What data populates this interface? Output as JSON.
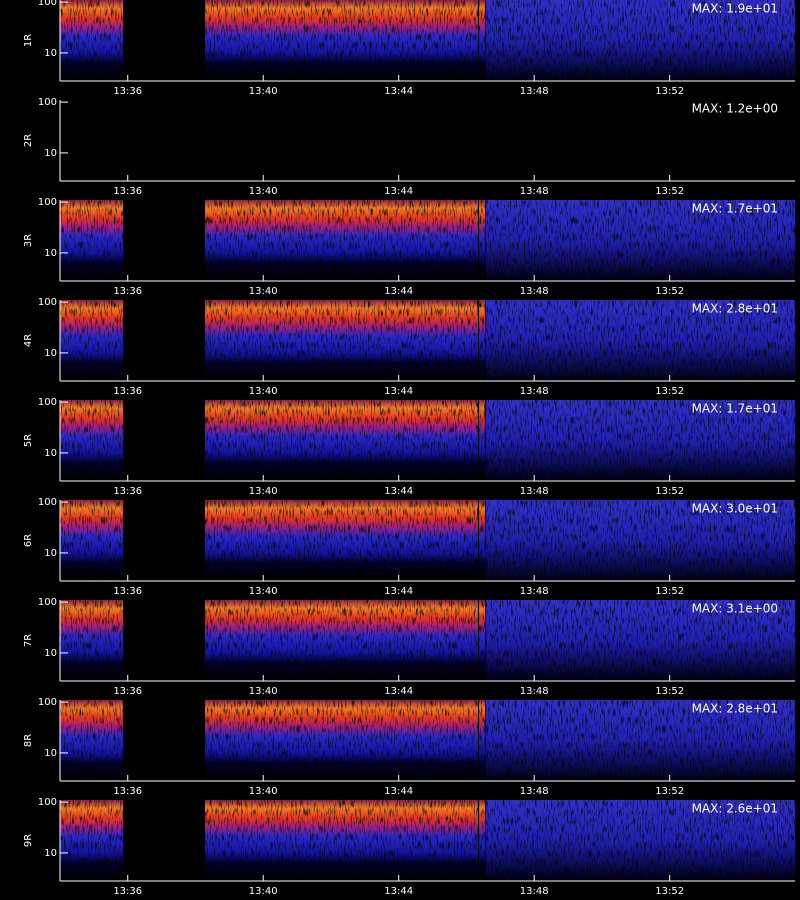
{
  "chart_data": [
    {
      "type": "spectrogram",
      "ylabel": "1R",
      "annotation": "MAX: 1.9e+01",
      "log_y": true,
      "ylim": [
        2.8,
        110
      ],
      "yticks": [
        10,
        100
      ],
      "xlim": [
        814,
        835.7
      ],
      "xticks": [
        {
          "value": 816,
          "label": "13:36"
        },
        {
          "value": 820,
          "label": "13:40"
        },
        {
          "value": 824,
          "label": "13:44"
        },
        {
          "value": 828,
          "label": "13:48"
        },
        {
          "value": 832,
          "label": "13:52"
        }
      ]
    },
    {
      "type": "spectrogram",
      "ylabel": "2R",
      "annotation": "MAX: 1.2e+00",
      "log_y": true,
      "ylim": [
        2.8,
        110
      ],
      "yticks": [
        10,
        100
      ],
      "xlim": [
        814,
        835.7
      ],
      "xticks": [
        {
          "value": 816,
          "label": "13:36"
        },
        {
          "value": 820,
          "label": "13:40"
        },
        {
          "value": 824,
          "label": "13:44"
        },
        {
          "value": 828,
          "label": "13:48"
        },
        {
          "value": 832,
          "label": "13:52"
        }
      ]
    },
    {
      "type": "spectrogram",
      "ylabel": "3R",
      "annotation": "MAX: 1.7e+01",
      "log_y": true,
      "ylim": [
        2.8,
        110
      ],
      "yticks": [
        10,
        100
      ],
      "xlim": [
        814,
        835.7
      ],
      "xticks": [
        {
          "value": 816,
          "label": "13:36"
        },
        {
          "value": 820,
          "label": "13:40"
        },
        {
          "value": 824,
          "label": "13:44"
        },
        {
          "value": 828,
          "label": "13:48"
        },
        {
          "value": 832,
          "label": "13:52"
        }
      ]
    },
    {
      "type": "spectrogram",
      "ylabel": "4R",
      "annotation": "MAX: 2.8e+01",
      "log_y": true,
      "ylim": [
        2.8,
        110
      ],
      "yticks": [
        10,
        100
      ],
      "xlim": [
        814,
        835.7
      ],
      "xticks": [
        {
          "value": 816,
          "label": "13:36"
        },
        {
          "value": 820,
          "label": "13:40"
        },
        {
          "value": 824,
          "label": "13:44"
        },
        {
          "value": 828,
          "label": "13:48"
        },
        {
          "value": 832,
          "label": "13:52"
        }
      ]
    },
    {
      "type": "spectrogram",
      "ylabel": "5R",
      "annotation": "MAX: 1.7e+01",
      "log_y": true,
      "ylim": [
        2.8,
        110
      ],
      "yticks": [
        10,
        100
      ],
      "xlim": [
        814,
        835.7
      ],
      "xticks": [
        {
          "value": 816,
          "label": "13:36"
        },
        {
          "value": 820,
          "label": "13:40"
        },
        {
          "value": 824,
          "label": "13:44"
        },
        {
          "value": 828,
          "label": "13:48"
        },
        {
          "value": 832,
          "label": "13:52"
        }
      ]
    },
    {
      "type": "spectrogram",
      "ylabel": "6R",
      "annotation": "MAX: 3.0e+01",
      "log_y": true,
      "ylim": [
        2.8,
        110
      ],
      "yticks": [
        10,
        100
      ],
      "xlim": [
        814,
        835.7
      ],
      "xticks": [
        {
          "value": 816,
          "label": "13:36"
        },
        {
          "value": 820,
          "label": "13:40"
        },
        {
          "value": 824,
          "label": "13:44"
        },
        {
          "value": 828,
          "label": "13:48"
        },
        {
          "value": 832,
          "label": "13:52"
        }
      ]
    },
    {
      "type": "spectrogram",
      "ylabel": "7R",
      "annotation": "MAX: 3.1e+00",
      "log_y": true,
      "ylim": [
        2.8,
        110
      ],
      "yticks": [
        10,
        100
      ],
      "xlim": [
        814,
        835.7
      ],
      "xticks": [
        {
          "value": 816,
          "label": "13:36"
        },
        {
          "value": 820,
          "label": "13:40"
        },
        {
          "value": 824,
          "label": "13:44"
        },
        {
          "value": 828,
          "label": "13:48"
        },
        {
          "value": 832,
          "label": "13:52"
        }
      ]
    },
    {
      "type": "spectrogram",
      "ylabel": "8R",
      "annotation": "MAX: 2.8e+01",
      "log_y": true,
      "ylim": [
        2.8,
        110
      ],
      "yticks": [
        10,
        100
      ],
      "xlim": [
        814,
        835.7
      ],
      "xticks": [
        {
          "value": 816,
          "label": "13:36"
        },
        {
          "value": 820,
          "label": "13:40"
        },
        {
          "value": 824,
          "label": "13:44"
        },
        {
          "value": 828,
          "label": "13:48"
        },
        {
          "value": 832,
          "label": "13:52"
        }
      ]
    },
    {
      "type": "spectrogram",
      "ylabel": "9R",
      "annotation": "MAX: 2.6e+01",
      "log_y": true,
      "ylim": [
        2.8,
        110
      ],
      "yticks": [
        10,
        100
      ],
      "xlim": [
        814,
        835.7
      ],
      "xticks": [
        {
          "value": 816,
          "label": "13:36"
        },
        {
          "value": 820,
          "label": "13:40"
        },
        {
          "value": 824,
          "label": "13:44"
        },
        {
          "value": 828,
          "label": "13:48"
        },
        {
          "value": 832,
          "label": "13:52"
        }
      ]
    }
  ]
}
